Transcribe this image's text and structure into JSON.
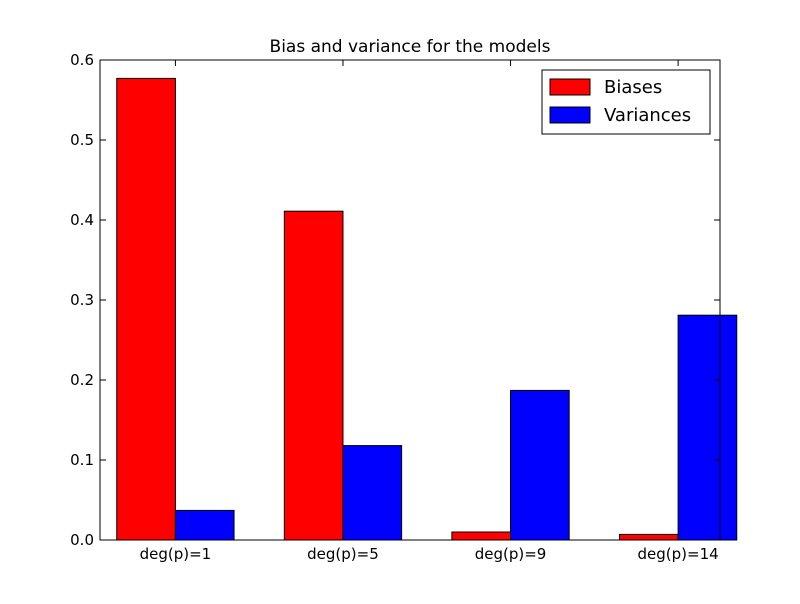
{
  "chart_data": {
    "type": "bar",
    "title": "Bias and variance for the models",
    "xlabel": "",
    "ylabel": "",
    "categories": [
      "deg(p)=1",
      "deg(p)=5",
      "deg(p)=9",
      "deg(p)=14"
    ],
    "series": [
      {
        "name": "Biases",
        "color": "#ff0000",
        "values": [
          0.577,
          0.411,
          0.01,
          0.007
        ]
      },
      {
        "name": "Variances",
        "color": "#0000ff",
        "values": [
          0.037,
          0.118,
          0.187,
          0.281
        ]
      }
    ],
    "ylim": [
      0,
      0.6
    ],
    "yticks": [
      0.0,
      0.1,
      0.2,
      0.3,
      0.4,
      0.5,
      0.6
    ],
    "ytick_labels": [
      "0.0",
      "0.1",
      "0.2",
      "0.3",
      "0.4",
      "0.5",
      "0.6"
    ],
    "grid": false,
    "legend_position": "top-right"
  }
}
